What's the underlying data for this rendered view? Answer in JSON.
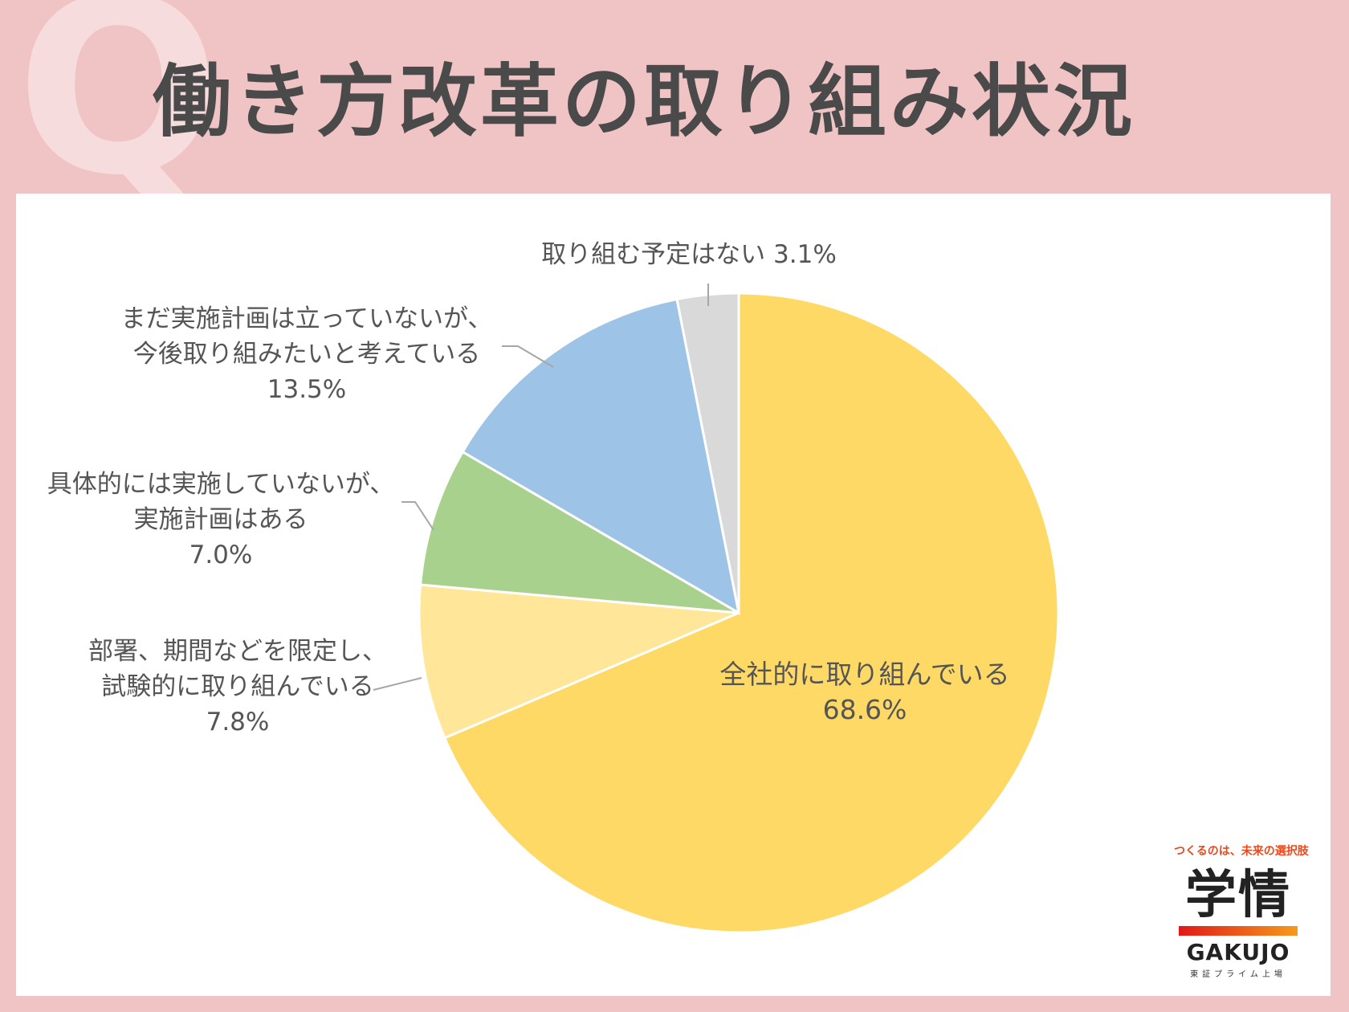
{
  "title": "働き方改革の取り組み状況",
  "title_mark": "Q",
  "logo": {
    "tagline": "つくるのは、未来の選択肢",
    "kanji": "学情",
    "roman": "GAKUJO",
    "sub": "東証プライム上場"
  },
  "chart_data": {
    "type": "pie",
    "start_angle": 0,
    "direction": "clockwise",
    "slices": [
      {
        "label": [
          "全社的に取り組んでいる"
        ],
        "percent_label": "68.6%",
        "value": 68.6,
        "color": "#ffd966"
      },
      {
        "label": [
          "部署、期間などを限定し、",
          "試験的に取り組んでいる"
        ],
        "percent_label": "7.8%",
        "value": 7.8,
        "color": "#ffe699"
      },
      {
        "label": [
          "具体的には実施していないが、",
          "実施計画はある"
        ],
        "percent_label": "7.0%",
        "value": 7.0,
        "color": "#a9d18e"
      },
      {
        "label": [
          "まだ実施計画は立っていないが、",
          "今後取り組みたいと考えている"
        ],
        "percent_label": "13.5%",
        "value": 13.5,
        "color": "#9dc3e6"
      },
      {
        "label": [
          "取り組む予定はない"
        ],
        "percent_label": "3.1%",
        "value": 3.1,
        "color": "#d9d9d9"
      }
    ]
  }
}
